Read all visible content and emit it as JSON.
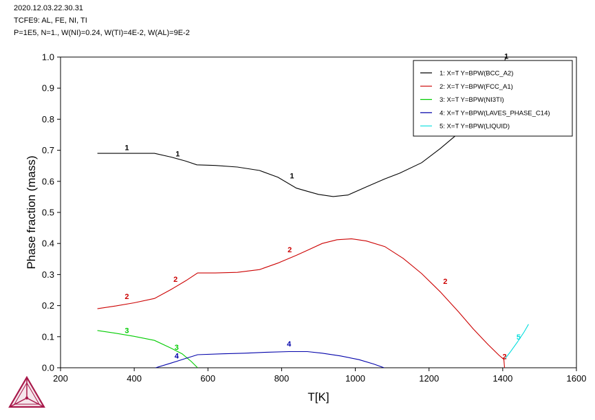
{
  "header": {
    "line1": "2020.12.03.22.30.31",
    "line2": "TCFE9: AL, FE, NI, TI",
    "line3": "P=1E5, N=1., W(NI)=0.24, W(TI)=4E-2, W(AL)=9E-2"
  },
  "chart_data": {
    "type": "line",
    "xlabel": "T[K]",
    "ylabel": "Phase fraction (mass)",
    "xlim": [
      200,
      1600
    ],
    "ylim": [
      0,
      1.0
    ],
    "xticks": [
      200,
      400,
      600,
      800,
      1000,
      1200,
      1400,
      1600
    ],
    "xtick_labels": [
      "200",
      "400",
      "600",
      "800",
      "1000",
      "1200",
      "1400",
      "1600"
    ],
    "yticks": [
      0,
      0.1,
      0.2,
      0.3,
      0.4,
      0.5,
      0.6,
      0.7,
      0.8,
      0.9,
      1.0
    ],
    "ytick_labels": [
      "0.0",
      "0.1",
      "0.2",
      "0.3",
      "0.4",
      "0.5",
      "0.6",
      "0.7",
      "0.8",
      "0.9",
      "1.0"
    ],
    "legend_position": "top-right",
    "series": [
      {
        "name": "1:  X=T  Y=BPW(BCC_A2)",
        "color": "#000000",
        "label": "1",
        "label_points": [
          [
            380,
            0.7
          ],
          [
            518,
            0.68
          ],
          [
            828,
            0.61
          ],
          [
            1410,
            0.995
          ]
        ],
        "points": [
          [
            300,
            0.69
          ],
          [
            360,
            0.69
          ],
          [
            420,
            0.69
          ],
          [
            455,
            0.69
          ],
          [
            500,
            0.678
          ],
          [
            540,
            0.665
          ],
          [
            570,
            0.653
          ],
          [
            620,
            0.651
          ],
          [
            680,
            0.646
          ],
          [
            740,
            0.635
          ],
          [
            790,
            0.613
          ],
          [
            840,
            0.578
          ],
          [
            870,
            0.568
          ],
          [
            900,
            0.558
          ],
          [
            940,
            0.551
          ],
          [
            980,
            0.556
          ],
          [
            1030,
            0.582
          ],
          [
            1080,
            0.608
          ],
          [
            1120,
            0.626
          ],
          [
            1180,
            0.66
          ],
          [
            1230,
            0.705
          ],
          [
            1280,
            0.755
          ],
          [
            1320,
            0.8
          ],
          [
            1360,
            0.865
          ],
          [
            1390,
            0.93
          ],
          [
            1403,
            0.975
          ],
          [
            1408,
            1.0
          ]
        ]
      },
      {
        "name": "2:  X=T  Y=BPW(FCC_A1)",
        "color": "#cc0000",
        "label": "2",
        "label_points": [
          [
            380,
            0.221
          ],
          [
            512,
            0.276
          ],
          [
            822,
            0.372
          ],
          [
            1244,
            0.27
          ],
          [
            1405,
            0.028
          ]
        ],
        "points": [
          [
            300,
            0.19
          ],
          [
            350,
            0.199
          ],
          [
            400,
            0.209
          ],
          [
            455,
            0.223
          ],
          [
            500,
            0.252
          ],
          [
            540,
            0.28
          ],
          [
            572,
            0.305
          ],
          [
            620,
            0.305
          ],
          [
            680,
            0.307
          ],
          [
            740,
            0.316
          ],
          [
            790,
            0.337
          ],
          [
            840,
            0.362
          ],
          [
            870,
            0.378
          ],
          [
            910,
            0.4
          ],
          [
            950,
            0.412
          ],
          [
            990,
            0.415
          ],
          [
            1030,
            0.408
          ],
          [
            1080,
            0.39
          ],
          [
            1130,
            0.352
          ],
          [
            1180,
            0.303
          ],
          [
            1230,
            0.245
          ],
          [
            1280,
            0.18
          ],
          [
            1320,
            0.125
          ],
          [
            1360,
            0.075
          ],
          [
            1390,
            0.04
          ],
          [
            1403,
            0.027
          ],
          [
            1405,
            0.0
          ]
        ]
      },
      {
        "name": "3:  X=T  Y=BPW(NI3TI)",
        "color": "#00cc00",
        "label": "3",
        "label_points": [
          [
            380,
            0.112
          ],
          [
            515,
            0.058
          ]
        ],
        "points": [
          [
            300,
            0.12
          ],
          [
            350,
            0.111
          ],
          [
            400,
            0.101
          ],
          [
            455,
            0.088
          ],
          [
            500,
            0.063
          ],
          [
            530,
            0.045
          ],
          [
            555,
            0.02
          ],
          [
            572,
            0.0
          ]
        ]
      },
      {
        "name": "4:  X=T  Y=BPW(LAVES_PHASE_C14)",
        "color": "#0000aa",
        "label": "4",
        "label_points": [
          [
            515,
            0.03
          ],
          [
            820,
            0.069
          ]
        ],
        "points": [
          [
            458,
            0.0
          ],
          [
            500,
            0.015
          ],
          [
            540,
            0.03
          ],
          [
            572,
            0.042
          ],
          [
            640,
            0.045
          ],
          [
            700,
            0.047
          ],
          [
            760,
            0.05
          ],
          [
            820,
            0.052
          ],
          [
            870,
            0.052
          ],
          [
            910,
            0.047
          ],
          [
            960,
            0.038
          ],
          [
            1010,
            0.026
          ],
          [
            1050,
            0.012
          ],
          [
            1078,
            0.0
          ]
        ]
      },
      {
        "name": "5:  X=T  Y=BPW(LIQUID)",
        "color": "#00dddd",
        "label": "5",
        "label_points": [
          [
            1443,
            0.091
          ]
        ],
        "points": [
          [
            1405,
            0.027
          ],
          [
            1420,
            0.05
          ],
          [
            1440,
            0.083
          ],
          [
            1458,
            0.115
          ],
          [
            1470,
            0.14
          ]
        ]
      }
    ]
  }
}
